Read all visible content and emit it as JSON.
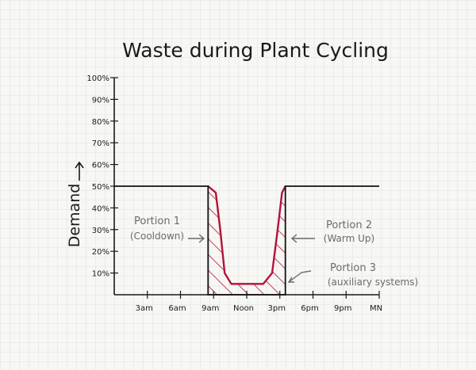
{
  "chart_data": {
    "type": "line",
    "title": "Waste during Plant Cycling",
    "xlabel": "",
    "ylabel": "Demand",
    "y_ticks": [
      "10%",
      "20%",
      "30%",
      "40%",
      "50%",
      "60%",
      "70%",
      "80%",
      "90%",
      "100%"
    ],
    "x_ticks": [
      "3am",
      "6am",
      "9am",
      "Noon",
      "3pm",
      "6pm",
      "9pm",
      "MN"
    ],
    "ylim": [
      0,
      100
    ],
    "xlim": [
      0,
      24
    ],
    "series": [
      {
        "name": "",
        "color": "#111111",
        "x": [
          0,
          8.5,
          8.5,
          15.5,
          15.5,
          24
        ],
        "y": [
          50,
          50,
          0,
          0,
          50,
          50
        ]
      },
      {
        "name": "",
        "color": "#b3123a",
        "x": [
          8.5,
          9.2,
          9.6,
          10.0,
          10.6,
          12.0,
          13.5,
          14.3,
          14.8,
          15.2,
          15.5
        ],
        "y": [
          50,
          47,
          30,
          10,
          5,
          5,
          5,
          10,
          30,
          47,
          50
        ]
      }
    ],
    "annotations": [
      {
        "label": "Portion 1",
        "sublabel": "(Cooldown)"
      },
      {
        "label": "Portion 2",
        "sublabel": "(Warm Up)"
      },
      {
        "label": "Portion 3",
        "sublabel": "(auxiliary systems)"
      }
    ],
    "grid": true
  }
}
